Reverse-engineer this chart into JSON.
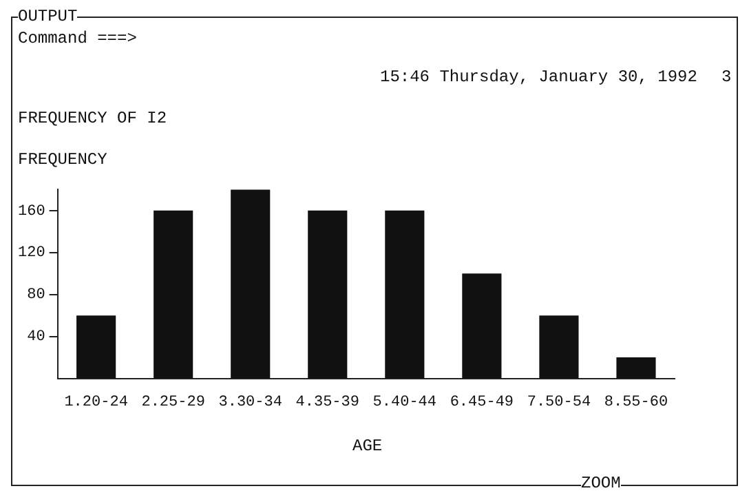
{
  "chart_data": {
    "type": "bar",
    "title": "FREQUENCY OF I2",
    "ylabel": "FREQUENCY",
    "xlabel": "AGE",
    "annotations": [
      "OUTPUT",
      "Command ===>",
      "15:46 Thursday, January 30, 1992",
      "3",
      "ZOOM"
    ],
    "categories": [
      "1.20-24",
      "2.25-29",
      "3.30-34",
      "4.35-39",
      "5.40-44",
      "6.45-49",
      "7.50-54",
      "8.55-60"
    ],
    "values": [
      60,
      160,
      180,
      160,
      160,
      100,
      60,
      20
    ],
    "color": "#111111",
    "ylim": [
      0,
      180
    ],
    "yticks": [
      40,
      80,
      120,
      160
    ],
    "grid": false,
    "legend": false
  }
}
